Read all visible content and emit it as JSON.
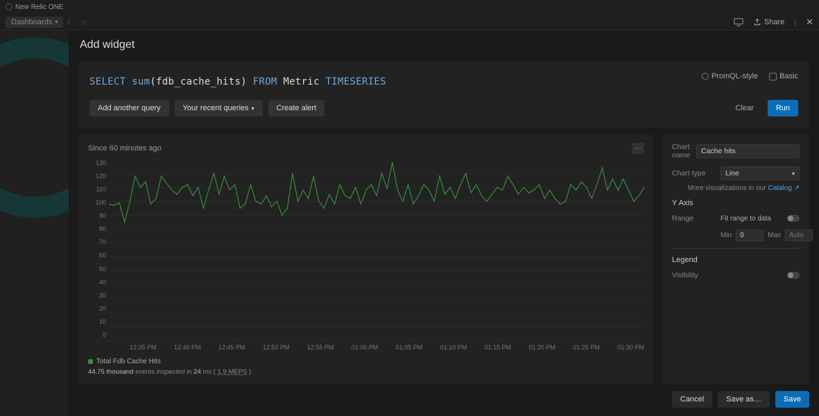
{
  "brand": "New Relic ONE",
  "breadcrumb": "Dashboards",
  "topbar": {
    "share": "Share"
  },
  "modal_title": "Add widget",
  "query_modes": {
    "promql": "PromQL-style",
    "basic": "Basic"
  },
  "query": {
    "select_kw": "SELECT ",
    "fn": "sum",
    "args": "(fdb_cache_hits) ",
    "from_kw": "FROM ",
    "src": "Metric ",
    "ts_kw": "TIMESERIES"
  },
  "buttons": {
    "add_query": "Add another query",
    "recent": "Your recent queries",
    "create_alert": "Create alert",
    "clear": "Clear",
    "run": "Run",
    "cancel": "Cancel",
    "save_as": "Save as…",
    "save": "Save"
  },
  "chart": {
    "since": "Since 60 minutes ago",
    "type": "line",
    "line_color": "#3a8f3a",
    "background": "#222222",
    "grid_color": "#333333",
    "y_ticks": [
      "130",
      "120",
      "110",
      "100",
      "90",
      "80",
      "70",
      "60",
      "50",
      "40",
      "30",
      "20",
      "10",
      "0"
    ],
    "ylim": [
      0,
      130
    ],
    "x_labels": [
      "12:35 PM",
      "12:40 PM",
      "12:45 PM",
      "12:50 PM",
      "12:55 PM",
      "01:00 PM",
      "01:05 PM",
      "01:10 PM",
      "01:15 PM",
      "01:20 PM",
      "01:25 PM",
      "01:30 PM"
    ],
    "values": [
      98,
      97,
      99,
      85,
      100,
      118,
      110,
      114,
      98,
      102,
      118,
      113,
      108,
      105,
      110,
      112,
      104,
      110,
      95,
      108,
      120,
      105,
      118,
      108,
      112,
      95,
      98,
      112,
      100,
      98,
      104,
      96,
      100,
      90,
      95,
      120,
      100,
      108,
      102,
      118,
      100,
      95,
      105,
      98,
      112,
      104,
      102,
      110,
      98,
      108,
      112,
      104,
      120,
      109,
      128,
      108,
      100,
      112,
      98,
      104,
      112,
      108,
      100,
      118,
      105,
      110,
      102,
      112,
      120,
      106,
      112,
      104,
      100,
      105,
      110,
      108,
      118,
      112,
      105,
      110,
      106,
      108,
      112,
      102,
      108,
      102,
      98,
      100,
      112,
      108,
      114,
      110,
      102,
      112,
      124,
      108,
      116,
      108,
      116,
      108,
      100,
      104,
      110
    ],
    "legend_label": "Total Fdb Cache Hits",
    "stats": {
      "events": "44.75 thousand",
      "ms": "24",
      "meps": "1.9",
      "meps_label": "MEPS"
    }
  },
  "side": {
    "chart_name_label": "Chart name",
    "chart_name": "Cache hits",
    "chart_type_label": "Chart type",
    "chart_type": "Line",
    "more_viz_pre": "More visualizations in our ",
    "catalog": "Catalog",
    "yaxis_title": "Y Axis",
    "range_label": "Range",
    "fit_label": "Fit range to data",
    "min_label": "Min",
    "min": "0",
    "max_label": "Max",
    "max": "Auto",
    "legend_title": "Legend",
    "visibility_label": "Visibility"
  }
}
